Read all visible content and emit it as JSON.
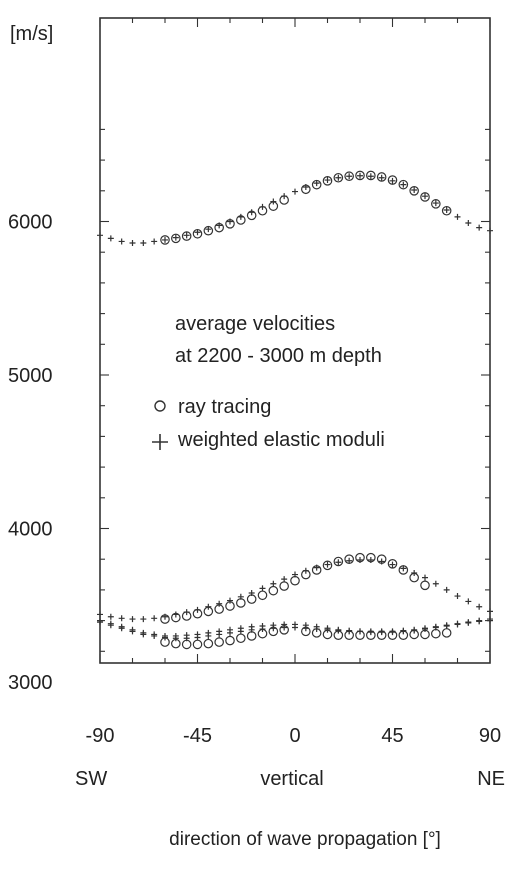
{
  "chart_data": {
    "type": "scatter",
    "y_unit": "[m/s]",
    "xlabel": "direction of wave propagation [°]",
    "x_ticks": [
      -90,
      -45,
      0,
      45,
      90
    ],
    "x_tick_labels": [
      "-90",
      "-45",
      "0",
      "45",
      "90"
    ],
    "y_ticks": [
      3000,
      4000,
      5000,
      6000
    ],
    "y_tick_labels": [
      "3000",
      "4000",
      "5000",
      "6000"
    ],
    "xlim": [
      -90,
      90
    ],
    "ylim": [
      3000,
      6700
    ],
    "x_direction_labels": {
      "left": "SW",
      "center": "vertical",
      "right": "NE"
    },
    "annotation": [
      "average velocities",
      "at 2200 - 3000 m depth"
    ],
    "legend": [
      {
        "marker": "circle",
        "label": "ray tracing"
      },
      {
        "marker": "plus",
        "label": "weighted elastic moduli"
      }
    ],
    "series": [
      {
        "marker": "circle",
        "x": [
          -60,
          -55,
          -50,
          -45,
          -40,
          -35,
          -30,
          -25,
          -20,
          -15,
          -10,
          -5,
          5,
          10,
          15,
          20,
          25,
          30,
          35,
          40,
          45,
          50,
          55,
          60,
          65,
          70
        ],
        "y": [
          5880,
          5890,
          5905,
          5920,
          5940,
          5960,
          5985,
          6010,
          6040,
          6070,
          6100,
          6140,
          6210,
          6240,
          6265,
          6285,
          6295,
          6300,
          6300,
          6290,
          6270,
          6240,
          6200,
          6160,
          6115,
          6070
        ]
      },
      {
        "marker": "plus",
        "x": [
          -90,
          -85,
          -80,
          -75,
          -70,
          -65,
          -60,
          -55,
          -50,
          -45,
          -40,
          -35,
          -30,
          -25,
          -20,
          -15,
          -10,
          -5,
          0,
          5,
          10,
          15,
          20,
          25,
          30,
          35,
          40,
          45,
          50,
          55,
          60,
          65,
          70,
          75,
          80,
          85,
          90
        ],
        "y": [
          5910,
          5890,
          5870,
          5860,
          5860,
          5870,
          5880,
          5895,
          5910,
          5930,
          5950,
          5975,
          6000,
          6030,
          6060,
          6095,
          6130,
          6165,
          6195,
          6225,
          6250,
          6270,
          6285,
          6295,
          6298,
          6295,
          6285,
          6265,
          6240,
          6205,
          6165,
          6120,
          6075,
          6030,
          5990,
          5960,
          5940
        ]
      },
      {
        "marker": "circle",
        "x": [
          -60,
          -55,
          -50,
          -45,
          -40,
          -35,
          -30,
          -25,
          -20,
          -15,
          -10,
          -5,
          0,
          5,
          10,
          15,
          20,
          25,
          30,
          35,
          40,
          45,
          50,
          55,
          60
        ],
        "y": [
          3410,
          3420,
          3430,
          3445,
          3460,
          3475,
          3495,
          3515,
          3540,
          3565,
          3595,
          3625,
          3660,
          3700,
          3730,
          3760,
          3785,
          3800,
          3810,
          3810,
          3800,
          3770,
          3730,
          3680,
          3630
        ]
      },
      {
        "marker": "plus",
        "x": [
          -90,
          -85,
          -80,
          -75,
          -70,
          -65,
          -60,
          -55,
          -50,
          -45,
          -40,
          -35,
          -30,
          -25,
          -20,
          -15,
          -10,
          -5,
          0,
          5,
          10,
          15,
          20,
          25,
          30,
          35,
          40,
          45,
          50,
          55,
          60,
          65,
          70,
          75,
          80,
          85,
          90
        ],
        "y": [
          3440,
          3425,
          3415,
          3410,
          3410,
          3415,
          3425,
          3440,
          3455,
          3470,
          3490,
          3510,
          3530,
          3555,
          3580,
          3610,
          3640,
          3670,
          3700,
          3725,
          3745,
          3765,
          3780,
          3790,
          3795,
          3795,
          3785,
          3765,
          3740,
          3710,
          3680,
          3640,
          3600,
          3560,
          3525,
          3490,
          3460
        ]
      },
      {
        "marker": "circle",
        "x": [
          -60,
          -55,
          -50,
          -45,
          -40,
          -35,
          -30,
          -25,
          -20,
          -15,
          -10,
          -5,
          5,
          10,
          15,
          20,
          25,
          30,
          35,
          40,
          45,
          50,
          55,
          60,
          65,
          70
        ],
        "y": [
          3260,
          3250,
          3245,
          3245,
          3250,
          3260,
          3270,
          3285,
          3300,
          3315,
          3330,
          3340,
          3330,
          3320,
          3310,
          3305,
          3305,
          3305,
          3305,
          3305,
          3305,
          3305,
          3310,
          3310,
          3315,
          3320
        ]
      },
      {
        "marker": "plus",
        "x": [
          -90,
          -85,
          -80,
          -75,
          -70,
          -65,
          -60,
          -55,
          -50,
          -45,
          -40,
          -35,
          -30,
          -25,
          -20,
          -15,
          -10,
          -5,
          0,
          5,
          10,
          15,
          20,
          25,
          30,
          35,
          40,
          45,
          50,
          55,
          60,
          65,
          70,
          75,
          80,
          85,
          90
        ],
        "y": [
          3390,
          3370,
          3350,
          3330,
          3310,
          3300,
          3290,
          3285,
          3285,
          3290,
          3300,
          3310,
          3320,
          3330,
          3340,
          3345,
          3350,
          3355,
          3355,
          3350,
          3345,
          3340,
          3335,
          3330,
          3330,
          3330,
          3330,
          3330,
          3335,
          3340,
          3350,
          3360,
          3370,
          3380,
          3390,
          3400,
          3410
        ]
      },
      {
        "marker": "plus",
        "x": [
          -90,
          -85,
          -80,
          -75,
          -70,
          -65,
          -60,
          -55,
          -50,
          -45,
          -40,
          -35,
          -30,
          -25,
          -20,
          -15,
          -10,
          -5,
          0,
          5,
          10,
          15,
          20,
          25,
          30,
          35,
          40,
          45,
          50,
          55,
          60,
          65,
          70,
          75,
          80,
          85,
          90
        ],
        "y": [
          3400,
          3380,
          3360,
          3340,
          3320,
          3310,
          3300,
          3300,
          3305,
          3310,
          3320,
          3330,
          3340,
          3350,
          3360,
          3365,
          3370,
          3375,
          3375,
          3370,
          3360,
          3350,
          3340,
          3335,
          3330,
          3325,
          3325,
          3325,
          3330,
          3335,
          3345,
          3355,
          3365,
          3375,
          3385,
          3395,
          3400
        ]
      }
    ]
  }
}
